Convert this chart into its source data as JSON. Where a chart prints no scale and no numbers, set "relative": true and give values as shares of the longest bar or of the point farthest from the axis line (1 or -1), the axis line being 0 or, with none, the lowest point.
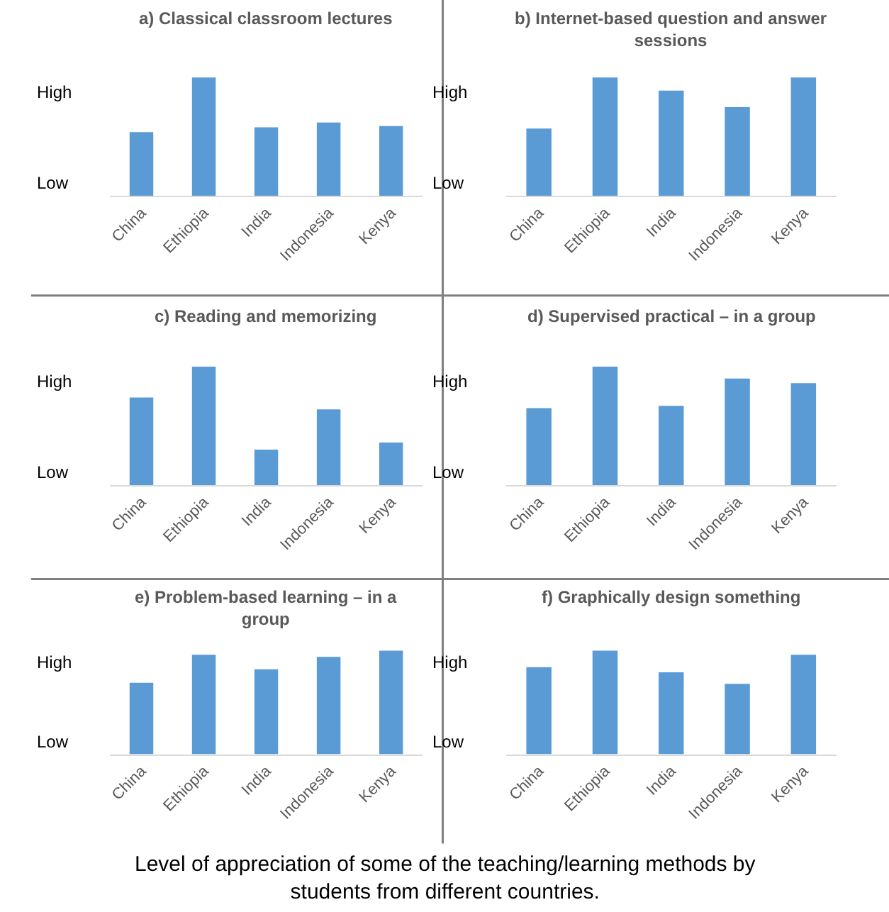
{
  "chart_data": [
    {
      "type": "bar",
      "title": "a) Classical classroom lectures",
      "relative": true,
      "categories": [
        "China",
        "Ethiopia",
        "India",
        "Indonesia",
        "Kenya"
      ],
      "color": "#5b9bd5",
      "values": [
        0.54,
        1.0,
        0.58,
        0.62,
        0.59
      ],
      "annotations": [
        "High",
        "Low"
      ]
    },
    {
      "type": "bar",
      "title": "b) Internet-based question and answer sessions",
      "relative": true,
      "categories": [
        "China",
        "Ethiopia",
        "India",
        "Indonesia",
        "Kenya"
      ],
      "color": "#5b9bd5",
      "values": [
        0.57,
        1.0,
        0.89,
        0.75,
        1.0
      ],
      "annotations": [
        "High",
        "Low"
      ]
    },
    {
      "type": "bar",
      "title": "c) Reading and memorizing",
      "relative": true,
      "categories": [
        "China",
        "Ethiopia",
        "India",
        "Indonesia",
        "Kenya"
      ],
      "color": "#5b9bd5",
      "values": [
        0.74,
        1.0,
        0.3,
        0.64,
        0.36
      ],
      "annotations": [
        "High",
        "Low"
      ]
    },
    {
      "type": "bar",
      "title": "d) Supervised practical – in a group",
      "relative": true,
      "categories": [
        "China",
        "Ethiopia",
        "India",
        "Indonesia",
        "Kenya"
      ],
      "color": "#5b9bd5",
      "values": [
        0.65,
        1.0,
        0.67,
        0.9,
        0.86
      ],
      "annotations": [
        "High",
        "Low"
      ]
    },
    {
      "type": "bar",
      "title": "e) Problem-based learning – in a group",
      "relative": true,
      "categories": [
        "China",
        "Ethiopia",
        "India",
        "Indonesia",
        "Kenya"
      ],
      "color": "#5b9bd5",
      "values": [
        0.69,
        0.96,
        0.82,
        0.94,
        1.0
      ],
      "annotations": [
        "High",
        "Low"
      ]
    },
    {
      "type": "bar",
      "title": "f) Graphically design something",
      "relative": true,
      "categories": [
        "China",
        "Ethiopia",
        "India",
        "Indonesia",
        "Kenya"
      ],
      "color": "#5b9bd5",
      "values": [
        0.84,
        1.0,
        0.79,
        0.68,
        0.96
      ],
      "annotations": [
        "High",
        "Low",
        "Level of appreciation of some of the teaching/learning methods by students from different countries."
      ]
    }
  ]
}
